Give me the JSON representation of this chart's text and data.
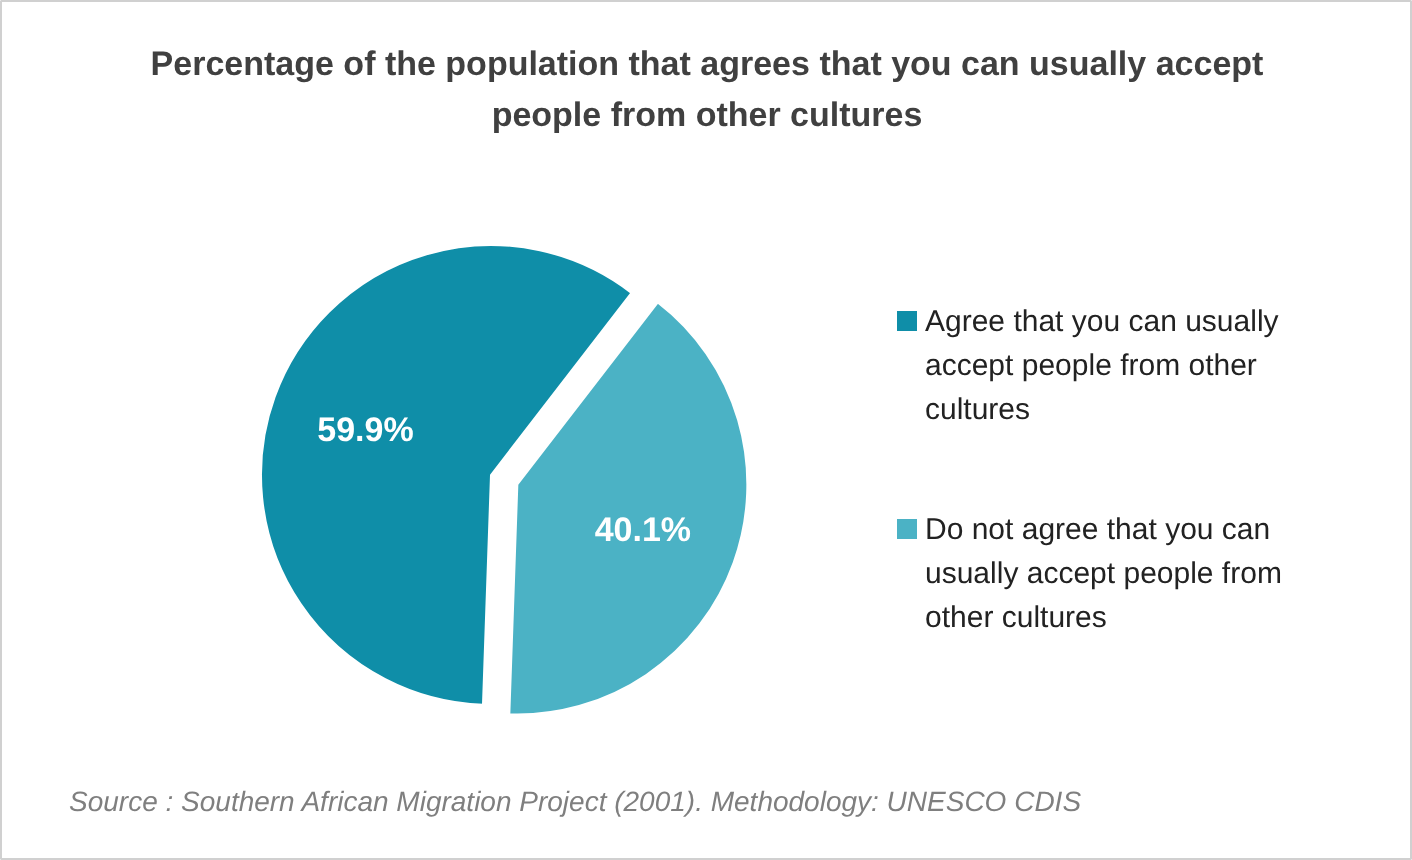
{
  "chart_data": {
    "type": "pie",
    "title": "Percentage of the population that agrees that you can usually accept people from other cultures",
    "categories": [
      "Agree that you can usually accept people from other cultures",
      "Do not agree that you can usually accept people from other cultures"
    ],
    "values": [
      59.9,
      40.1
    ],
    "colors": [
      "#0f8ea8",
      "#4bb2c5"
    ],
    "value_labels": [
      "59.9%",
      "40.1%"
    ],
    "legend": "right",
    "annotations": [
      "Source : Southern African Migration Project (2001). Methodology: UNESCO CDIS"
    ]
  }
}
